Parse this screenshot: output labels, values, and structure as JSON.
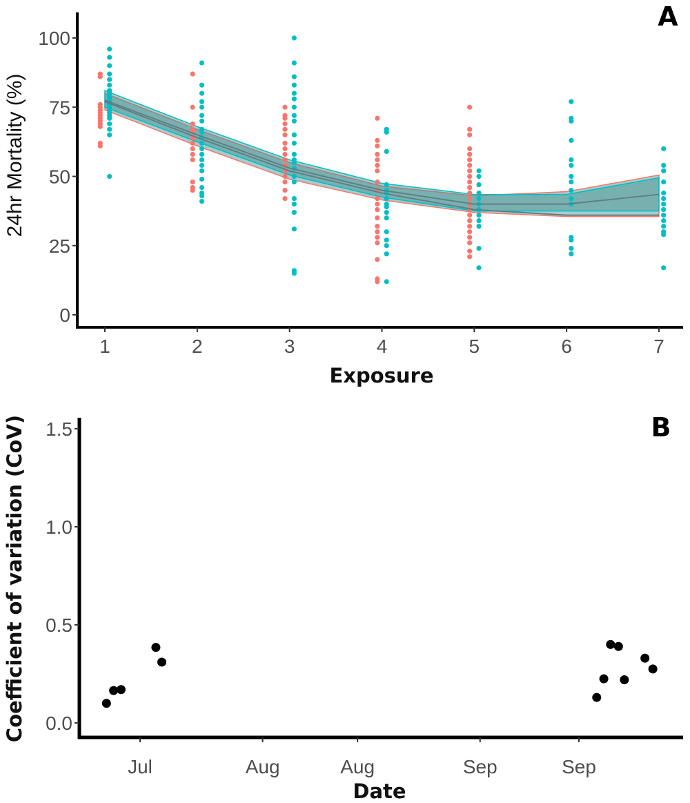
{
  "chart_data": [
    {
      "panel": "A",
      "type": "scatter",
      "title": "",
      "xlabel": "Exposure",
      "ylabel": "24hr Mortality (%)",
      "xlim": [
        0.75,
        7.25
      ],
      "ylim": [
        0,
        100
      ],
      "x_ticks": [
        1,
        2,
        3,
        4,
        5,
        6,
        7
      ],
      "y_ticks": [
        0,
        25,
        50,
        75,
        100
      ],
      "grid": false,
      "legend": "none",
      "colors": {
        "series1": "#F8766D",
        "series2": "#00BFC4",
        "ribbon": "#3f8f8f",
        "fit": "#5f7f86"
      },
      "series": [
        {
          "color": "#F8766D",
          "offset": -0.05,
          "points": [
            [
              1,
              [
                87,
                86,
                76,
                75,
                74,
                73,
                72,
                71,
                70,
                69,
                68,
                62,
                61
              ]
            ],
            [
              2,
              [
                87,
                75,
                69,
                67,
                66,
                64,
                62,
                60,
                58,
                56,
                48,
                46,
                45
              ]
            ],
            [
              3,
              [
                75,
                72,
                71,
                69,
                67,
                65,
                62,
                60,
                58,
                56,
                54,
                52,
                50,
                48,
                45,
                42
              ]
            ],
            [
              4,
              [
                71,
                63,
                61,
                58,
                56,
                54,
                52,
                48,
                45,
                42,
                40,
                38,
                35,
                32,
                30,
                28,
                26,
                20,
                13,
                12
              ]
            ],
            [
              5,
              [
                75,
                67,
                65,
                60,
                58,
                56,
                54,
                52,
                50,
                48,
                46,
                44,
                42,
                40,
                38,
                36,
                34,
                32,
                30,
                28,
                26,
                23,
                21
              ]
            ]
          ],
          "fit": [
            77,
            64,
            52,
            44,
            38,
            36,
            36
          ],
          "ribbon_low": [
            74,
            61,
            49,
            41.5,
            37,
            35.5,
            35.5
          ],
          "ribbon_high": [
            80,
            67,
            55,
            46.5,
            43,
            44.5,
            50.5
          ]
        },
        {
          "color": "#00BFC4",
          "offset": 0.05,
          "points": [
            [
              1,
              [
                96,
                93,
                90,
                87,
                85,
                83,
                81,
                80,
                79,
                78,
                77,
                76,
                75,
                74,
                73,
                72,
                71,
                69,
                67,
                65,
                50
              ]
            ],
            [
              2,
              [
                91,
                83,
                80,
                77,
                75,
                72,
                70,
                67,
                66,
                64,
                62,
                60,
                58,
                56,
                54,
                52,
                49,
                46,
                44,
                43,
                41
              ]
            ],
            [
              3,
              [
                100,
                91,
                86,
                83,
                80,
                78,
                75,
                72,
                70,
                65,
                62,
                58,
                56,
                55,
                53,
                50,
                48,
                42,
                40,
                37,
                31,
                16,
                15
              ]
            ],
            [
              4,
              [
                67,
                66,
                59,
                47,
                45,
                44,
                42,
                40,
                39,
                37,
                35,
                30,
                27,
                25,
                22,
                12
              ]
            ],
            [
              5,
              [
                52,
                50,
                47,
                44,
                42,
                40,
                38,
                36,
                34,
                32,
                24,
                17
              ]
            ],
            [
              6,
              [
                77,
                71,
                70,
                63,
                56,
                54,
                50,
                48,
                45,
                42,
                40,
                28,
                27,
                24,
                22
              ]
            ],
            [
              7,
              [
                60,
                54,
                52,
                48,
                44,
                42,
                40,
                38,
                36,
                34,
                32,
                30,
                29,
                17
              ]
            ]
          ],
          "fit": [
            77.5,
            65,
            53,
            45,
            40,
            40,
            43.5
          ],
          "ribbon_low": [
            75,
            62.5,
            50.5,
            42.5,
            37.5,
            37.5,
            37.5
          ],
          "ribbon_high": [
            81,
            68,
            56,
            47.5,
            43.5,
            43.5,
            49.5
          ]
        }
      ]
    },
    {
      "panel": "B",
      "type": "scatter",
      "title": "",
      "xlabel": "Date",
      "ylabel": "Coefficient of variation (CoV)",
      "ylim": [
        -0.06,
        1.57
      ],
      "y_ticks": [
        0.0,
        0.5,
        1.0,
        1.5
      ],
      "y_tick_labels": [
        "0.0",
        "0.5",
        "1.0",
        "1.5"
      ],
      "x_ticks": [
        {
          "day": 14,
          "label": "Jul"
        },
        {
          "day": 45,
          "label": "Aug"
        },
        {
          "day": 69,
          "label": "Aug"
        },
        {
          "day": 100,
          "label": "Sep"
        },
        {
          "day": 125,
          "label": "Sep"
        }
      ],
      "xlim": [
        -0.7,
        145
      ],
      "grid": false,
      "legend": "none",
      "colors": {
        "points": "#000000"
      },
      "points": [
        {
          "x": 5.5,
          "y": 0.1
        },
        {
          "x": 7.3,
          "y": 0.165
        },
        {
          "x": 9.2,
          "y": 0.17
        },
        {
          "x": 18.0,
          "y": 0.385
        },
        {
          "x": 19.5,
          "y": 0.31
        },
        {
          "x": 129.5,
          "y": 0.13
        },
        {
          "x": 131.3,
          "y": 0.225
        },
        {
          "x": 133.0,
          "y": 0.4
        },
        {
          "x": 135.0,
          "y": 0.39
        },
        {
          "x": 136.5,
          "y": 0.22
        },
        {
          "x": 141.7,
          "y": 0.33
        },
        {
          "x": 143.7,
          "y": 0.275
        }
      ]
    }
  ],
  "labels": {
    "panel_a": "A",
    "panel_b": "B"
  }
}
